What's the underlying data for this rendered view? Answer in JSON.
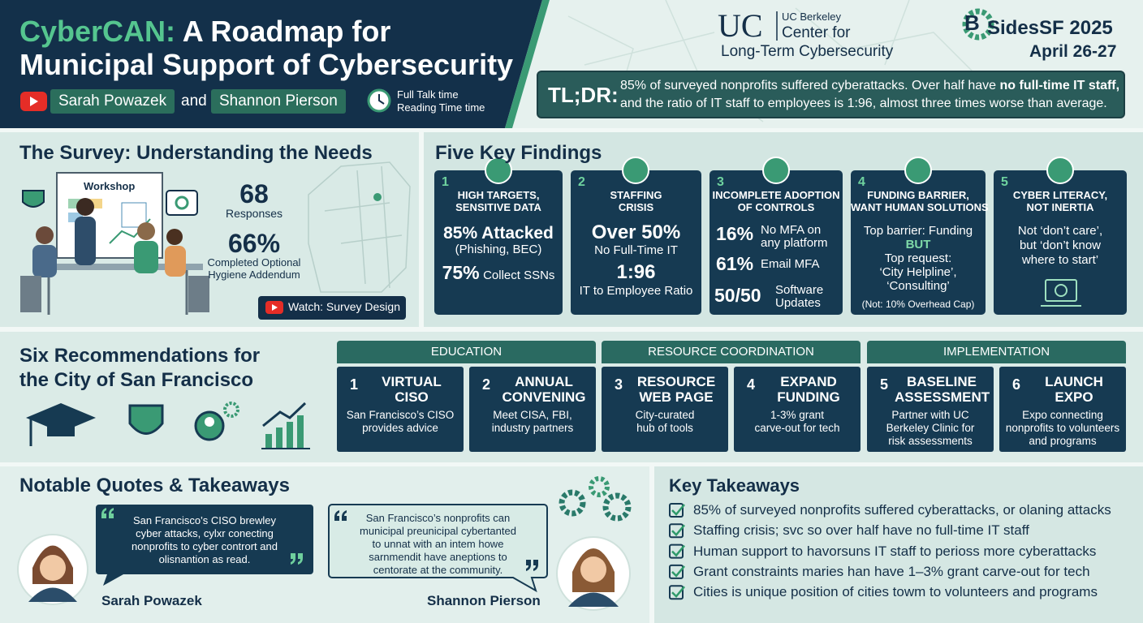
{
  "header": {
    "title": {
      "highlight": "CyberCAN:",
      "rest": "A Roadmap for",
      "line2": "Municipal Support of Cybersecurity"
    },
    "speakers": [
      "Sarah Powazek",
      "Shannon Pierson"
    ],
    "conjunction": "and",
    "time": [
      "Full Talk time",
      "Reading Time time"
    ]
  },
  "logos": {
    "uc": {
      "mark": "UC",
      "name": "UC Berkeley",
      "center": [
        "Center for",
        "Long-Term Cybersecurity"
      ]
    },
    "bsides": {
      "letter": "B",
      "name": "SidesSF 2025",
      "dates": "April 26-27"
    }
  },
  "tldr": {
    "label": "TL;DR:",
    "line1": "85% of surveyed nonprofits suffered cyberattacks. Over half have",
    "emphasis": "no full-time IT staff,",
    "line2": "and the ratio of IT staff to employees is 1:96, almost three times worse than average."
  },
  "survey": {
    "title": "The Survey: Understanding the Needs",
    "board_label": "Workshop",
    "stats": [
      {
        "value": "68",
        "label": [
          "Responses"
        ]
      },
      {
        "value": "66%",
        "label": [
          "Completed Optional",
          "Hygiene Addendum"
        ]
      }
    ],
    "button": "Watch: Survey Design"
  },
  "findings": {
    "title": "Five Key Findings",
    "cards": [
      {
        "number": "1",
        "heading": [
          "HIGH TARGETS,",
          "SENSITIVE DATA"
        ],
        "lead": "85% Attacked",
        "lead_note": "(Phishing, BEC)",
        "second": "75%",
        "second_note": "Collect SSNs"
      },
      {
        "number": "2",
        "heading": [
          "STAFFING",
          "CRISIS"
        ],
        "lead": "Over 50%",
        "lead_note": "No Full-Time IT",
        "second": "1:96",
        "second_note": "IT to Employee Ratio"
      },
      {
        "number": "3",
        "heading": [
          "INCOMPLETE ADOPTION",
          "OF CONTROLS"
        ],
        "stats": [
          {
            "value": "16%",
            "label": [
              "No MFA on",
              "any platform"
            ]
          },
          {
            "value": "61%",
            "label": [
              "Email MFA"
            ]
          },
          {
            "value": "50/50",
            "label": [
              "Software",
              "Updates"
            ]
          }
        ]
      },
      {
        "number": "4",
        "heading": [
          "FUNDING BARRIER,",
          "WANT HUMAN SOLUTIONS"
        ],
        "lines": [
          "Top barrier: Funding",
          "BUT",
          "Top request:",
          "‘City Helpline’,",
          "‘Consulting’"
        ],
        "note": "(Not: 10% Overhead Cap)"
      },
      {
        "number": "5",
        "heading": [
          "CYBER LITERACY,",
          "NOT INERTIA"
        ],
        "lines": [
          "Not ‘don’t care’,",
          "but ‘don’t know",
          "where to start’"
        ]
      }
    ]
  },
  "recommendations": {
    "title": [
      "Six Recommendations for",
      "the City of San Francisco"
    ],
    "groups": [
      {
        "name": "EDUCATION",
        "items": [
          {
            "number": "1",
            "title": [
              "VIRTUAL",
              "CISO"
            ],
            "text": [
              "San Francisco’s CISO",
              "provides advice"
            ]
          },
          {
            "number": "2",
            "title": [
              "ANNUAL",
              "CONVENING"
            ],
            "text": [
              "Meet CISA, FBI,",
              "industry partners"
            ]
          }
        ]
      },
      {
        "name": "RESOURCE COORDINATION",
        "items": [
          {
            "number": "3",
            "title": [
              "RESOURCE",
              "WEB PAGE"
            ],
            "text": [
              "City-curated",
              "hub of tools"
            ]
          },
          {
            "number": "4",
            "title": [
              "EXPAND",
              "FUNDING"
            ],
            "text": [
              "1-3% grant",
              "carve-out for tech"
            ]
          }
        ]
      },
      {
        "name": "IMPLEMENTATION",
        "items": [
          {
            "number": "5",
            "title": [
              "BASELINE",
              "ASSESSMENT"
            ],
            "text": [
              "Partner with UC",
              "Berkeley Clinic for",
              "risk assessments"
            ]
          },
          {
            "number": "6",
            "title": [
              "LAUNCH",
              "EXPO"
            ],
            "text": [
              "Expo connecting",
              "nonprofits to volunteers",
              "and programs"
            ]
          }
        ]
      }
    ]
  },
  "quotes": {
    "title": "Notable Quotes & Takeaways",
    "items": [
      {
        "lines": [
          "San Francisco’s CISO brewley",
          "cyber attacks, cylxr conecting",
          "nonprofits to cyber contrort and",
          "olisnantion as read."
        ],
        "name": "Sarah Powazek"
      },
      {
        "lines": [
          "San Francisco’s nonprofits can",
          "municipal preunicipal cybertanted",
          "to unnat with an intem howe",
          "sarnmendit have aneptions to",
          "centorate at the community."
        ],
        "name": "Shannon Pierson"
      }
    ]
  },
  "takeaways": {
    "title": "Key Takeaways",
    "items": [
      "85% of surveyed nonprofits suffered cyberattacks, or olaning attacks",
      "Staffing crisis; svc so over half have no full-time IT staff",
      "Human support to havorsuns IT staff to perioss more cyberattacks",
      "Grant constraints maries han have 1–3% grant carve-out for tech",
      "Cities is unique position of cities towm to volunteers and programs"
    ]
  }
}
